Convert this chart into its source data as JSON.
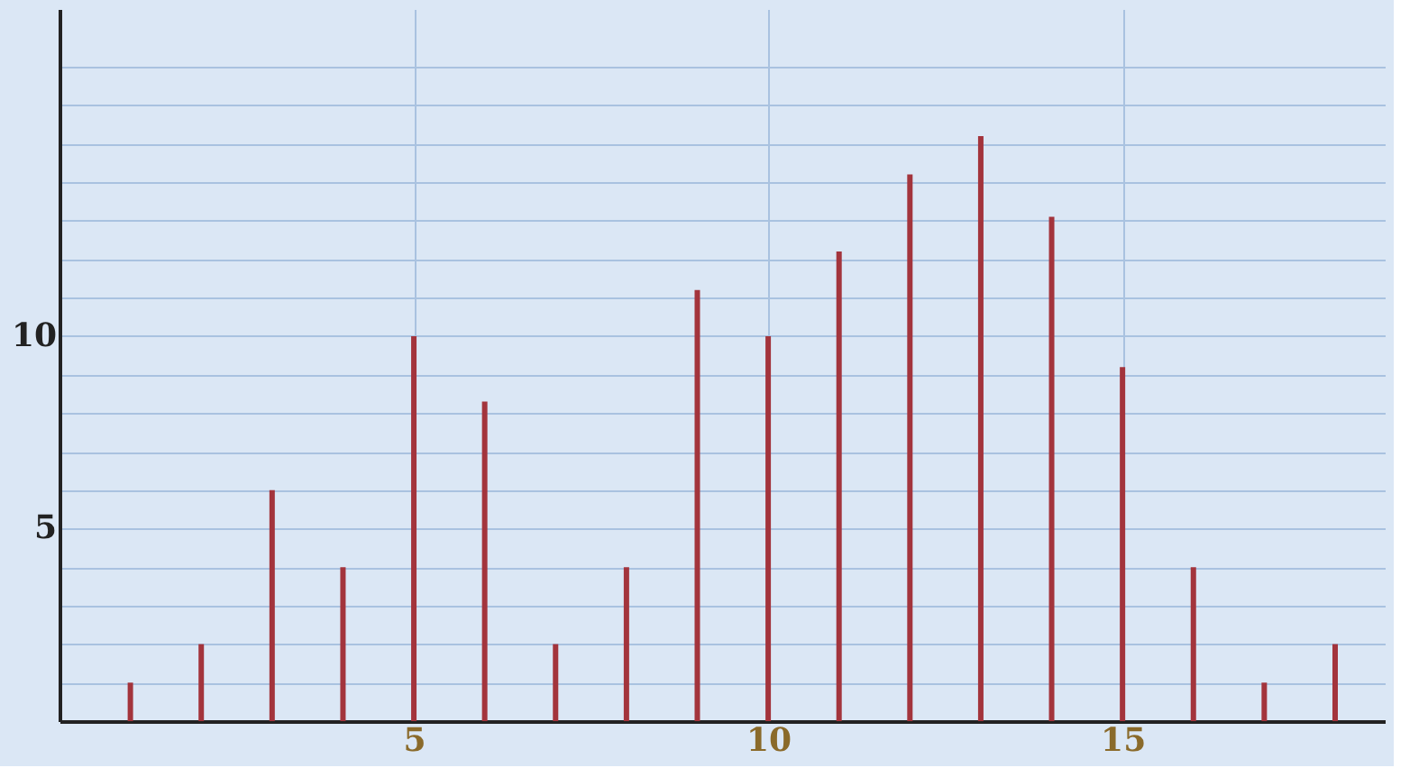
{
  "chart_data": {
    "type": "bar",
    "x": [
      1,
      2,
      3,
      4,
      5,
      6,
      7,
      8,
      9,
      10,
      11,
      12,
      13,
      14,
      15,
      16,
      17,
      18
    ],
    "values": [
      1,
      2,
      6,
      4,
      10,
      8.3,
      2,
      4,
      11.2,
      10,
      12.2,
      14.2,
      15.2,
      13.1,
      9.2,
      4,
      1,
      2
    ],
    "color": "#a3343c",
    "xlim": [
      0,
      18.7
    ],
    "xticks": [
      5,
      10,
      15
    ],
    "ylim": [
      0,
      18.5
    ],
    "yticks": [
      {
        "value": 1,
        "label": null
      },
      {
        "value": 2,
        "label": null
      },
      {
        "value": 3,
        "label": null
      },
      {
        "value": 4,
        "label": null
      },
      5,
      {
        "value": 6,
        "label": null
      },
      {
        "value": 7,
        "label": null
      },
      {
        "value": 8,
        "label": null
      },
      {
        "value": 9,
        "label": null
      },
      10,
      {
        "value": 11,
        "label": null
      },
      {
        "value": 12,
        "label": null
      },
      {
        "value": 13,
        "label": null
      },
      {
        "value": 14,
        "label": null
      },
      {
        "value": 15,
        "label": null
      },
      {
        "value": 16,
        "label": null
      },
      {
        "value": 17,
        "label": null
      }
    ],
    "grid": true
  }
}
